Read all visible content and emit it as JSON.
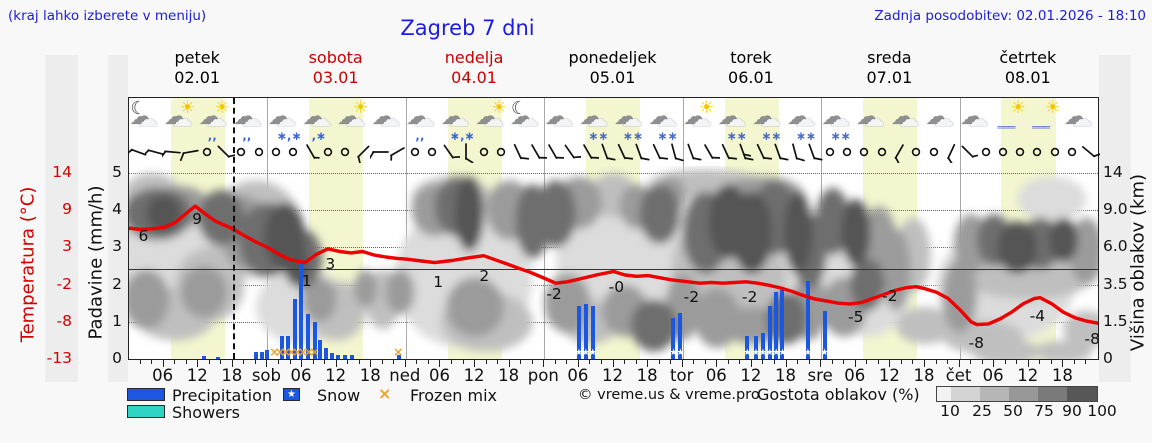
{
  "header": {
    "hint": "(kraj lahko izberete v meniju)",
    "title": "Zagreb 7 dni",
    "updated": "Zadnja posodobitev: 02.01.2026 - 18:10"
  },
  "days": [
    {
      "name": "petek",
      "date": "02.01",
      "weekend": false
    },
    {
      "name": "sobota",
      "date": "03.01",
      "weekend": true
    },
    {
      "name": "nedelja",
      "date": "04.01",
      "weekend": true
    },
    {
      "name": "ponedeljek",
      "date": "05.01",
      "weekend": false
    },
    {
      "name": "torek",
      "date": "06.01",
      "weekend": false
    },
    {
      "name": "sreda",
      "date": "07.01",
      "weekend": false
    },
    {
      "name": "četrtek",
      "date": "08.01",
      "weekend": false
    }
  ],
  "axes": {
    "temp": {
      "label": "Temperatura (°C)",
      "ticks": [
        "14",
        "9",
        "3",
        "-2",
        "-8",
        "-13"
      ],
      "color": "#d40000"
    },
    "precip": {
      "label": "Padavine (mm/h)",
      "ticks": [
        "5",
        "4",
        "3",
        "2",
        "1",
        "0"
      ]
    },
    "height": {
      "label": "Višina oblakov (km)",
      "ticks": [
        "14",
        "9.0",
        "6.0",
        "3.5",
        "1.5",
        "0"
      ]
    },
    "time": {
      "hour_labels": [
        "06",
        "12",
        "18"
      ],
      "day_abbr": [
        "sob",
        "ned",
        "pon",
        "tor",
        "sre",
        "čet"
      ]
    }
  },
  "legend": {
    "precipitation": "Precipitation",
    "snow": "Snow",
    "frozen_mix": "Frozen mix",
    "showers": "Showers",
    "credit": "© vreme.us & vreme.pro",
    "cloud_density": "Gostota oblakov (%)",
    "density_ticks": [
      "10",
      "25",
      "50",
      "75",
      "90",
      "100"
    ],
    "colors": {
      "precipitation": "#1b57df",
      "showers": "#2ed3c3",
      "frozen_mix": "#f0a125",
      "density_scale": [
        "#f2f2f2",
        "#d4d4d4",
        "#b6b6b6",
        "#989898",
        "#7a7a7a",
        "#575757"
      ]
    }
  },
  "icon_glyphs": {
    "cloud": "☁",
    "sun": "☀",
    "moon": "☾",
    "snow": "∗",
    "rain": "‚",
    "star": "★",
    "frozen": "×",
    "fog": "═"
  },
  "chart_data": {
    "type": "meteogram",
    "x_hours_range": [
      0,
      168
    ],
    "temp_scale_c": [
      -13,
      14
    ],
    "precip_scale_mm": [
      0,
      5
    ],
    "cloud_height_scale_km": [
      0,
      1.5,
      3.5,
      6.0,
      9.0,
      14
    ],
    "now_hour": 18,
    "day_band_hours": [
      7.25,
      16.65
    ],
    "temperature_c": [
      [
        0,
        6
      ],
      [
        2,
        5.8
      ],
      [
        4,
        5.9
      ],
      [
        6,
        6.1
      ],
      [
        8,
        6.8
      ],
      [
        10,
        8.2
      ],
      [
        11.5,
        9.2
      ],
      [
        13,
        8.2
      ],
      [
        15,
        7
      ],
      [
        18,
        5.9
      ],
      [
        20,
        4.9
      ],
      [
        22,
        4
      ],
      [
        24,
        3.2
      ],
      [
        26,
        2.2
      ],
      [
        28,
        1.4
      ],
      [
        30.5,
        1
      ],
      [
        32.5,
        2.2
      ],
      [
        34.5,
        3
      ],
      [
        36.5,
        2.6
      ],
      [
        38.5,
        2.4
      ],
      [
        40.5,
        2.6
      ],
      [
        42.5,
        2.1
      ],
      [
        44.5,
        1.8
      ],
      [
        46.5,
        1.6
      ],
      [
        48,
        1.5
      ],
      [
        50,
        1.3
      ],
      [
        53,
        1
      ],
      [
        56,
        1.3
      ],
      [
        59,
        1.7
      ],
      [
        61.5,
        2
      ],
      [
        63.5,
        1.4
      ],
      [
        65.5,
        0.8
      ],
      [
        67.5,
        0.2
      ],
      [
        69.5,
        -0.4
      ],
      [
        71.5,
        -1.1
      ],
      [
        74,
        -2
      ],
      [
        76,
        -1.8
      ],
      [
        78,
        -1.4
      ],
      [
        81,
        -0.8
      ],
      [
        84,
        -0.3
      ],
      [
        86,
        -0.8
      ],
      [
        88,
        -1
      ],
      [
        90,
        -0.9
      ],
      [
        92,
        -1.2
      ],
      [
        94,
        -1.5
      ],
      [
        96,
        -1.7
      ],
      [
        99,
        -2
      ],
      [
        101,
        -1.9
      ],
      [
        103,
        -2
      ],
      [
        105,
        -1.9
      ],
      [
        107,
        -1.8
      ],
      [
        109,
        -2
      ],
      [
        111,
        -2.3
      ],
      [
        113,
        -2.7
      ],
      [
        115,
        -3.2
      ],
      [
        117,
        -3.8
      ],
      [
        119,
        -4.3
      ],
      [
        121,
        -4.6
      ],
      [
        123,
        -4.9
      ],
      [
        125,
        -5
      ],
      [
        127,
        -4.8
      ],
      [
        129,
        -4.2
      ],
      [
        131,
        -3.6
      ],
      [
        133,
        -3
      ],
      [
        135,
        -2.6
      ],
      [
        136.5,
        -2.5
      ],
      [
        138,
        -2.8
      ],
      [
        140,
        -3.3
      ],
      [
        142,
        -4.2
      ],
      [
        144,
        -5.8
      ],
      [
        146,
        -7.6
      ],
      [
        147,
        -8
      ],
      [
        149,
        -7.9
      ],
      [
        151,
        -7.2
      ],
      [
        153,
        -6.2
      ],
      [
        155,
        -5
      ],
      [
        157,
        -4.2
      ],
      [
        158,
        -4.1
      ],
      [
        160,
        -5
      ],
      [
        162,
        -6.2
      ],
      [
        164,
        -7
      ],
      [
        166,
        -7.5
      ],
      [
        168,
        -7.8
      ]
    ],
    "temp_point_labels": [
      [
        2.5,
        4.9,
        "6"
      ],
      [
        11.8,
        7.3,
        "9"
      ],
      [
        30.8,
        -1.7,
        "1"
      ],
      [
        34.9,
        0.8,
        "3"
      ],
      [
        53.6,
        -1.8,
        "1"
      ],
      [
        61.6,
        -1,
        "2"
      ],
      [
        73.7,
        -3.5,
        "-2"
      ],
      [
        84.5,
        -2.5,
        "-0"
      ],
      [
        97.5,
        -4,
        "-2"
      ],
      [
        107.6,
        -4,
        "-2"
      ],
      [
        126,
        -6.9,
        "-5"
      ],
      [
        131.9,
        -3.9,
        "-2"
      ],
      [
        146.9,
        -10.7,
        "-8"
      ],
      [
        157.5,
        -6.7,
        "-4"
      ],
      [
        167,
        -10.1,
        "-8"
      ]
    ],
    "precip_bars": [
      [
        13,
        0.07,
        "rain"
      ],
      [
        15.5,
        0.05,
        "rain"
      ],
      [
        22,
        0.2,
        "rain"
      ],
      [
        23,
        0.2,
        "rain"
      ],
      [
        24,
        0.25,
        "rain"
      ],
      [
        26.5,
        0.62,
        "rain"
      ],
      [
        27.6,
        0.62,
        "rain"
      ],
      [
        28.7,
        1.6,
        "rain"
      ],
      [
        29.9,
        2.58,
        "rain"
      ],
      [
        31.1,
        1.21,
        "rain"
      ],
      [
        32.2,
        1,
        "rain"
      ],
      [
        33.2,
        0.5,
        "rain"
      ],
      [
        34.2,
        0.3,
        "rain"
      ],
      [
        35.2,
        0.15,
        "rain"
      ],
      [
        36.3,
        0.12,
        "rain"
      ],
      [
        37.4,
        0.1,
        "rain"
      ],
      [
        38.6,
        0.12,
        "rain"
      ],
      [
        46.8,
        0.1,
        "rain"
      ],
      [
        78,
        1.42,
        "snow"
      ],
      [
        79.2,
        1.48,
        "snow"
      ],
      [
        80.4,
        1.42,
        "snow"
      ],
      [
        94.4,
        1.1,
        "snow"
      ],
      [
        95.6,
        1.24,
        "snow"
      ],
      [
        107.2,
        0.62,
        "snow"
      ],
      [
        108.7,
        0.62,
        "snow"
      ],
      [
        109.9,
        0.7,
        "snow"
      ],
      [
        111.1,
        1.42,
        "snow"
      ],
      [
        112.2,
        1.81,
        "snow"
      ],
      [
        113.3,
        1.85,
        "snow"
      ],
      [
        117.7,
        2.1,
        "snow"
      ],
      [
        120.6,
        1.29,
        "snow"
      ]
    ],
    "frozen_mix_hours": [
      25,
      26,
      27,
      28,
      29,
      30,
      31,
      32,
      46.5
    ],
    "weather_icons": [
      "moon-cloud",
      "sun-cloud",
      "sun-cloud-rain",
      "cloud-rain",
      "cloud-sleet",
      "cloud-rain-snow",
      "sun-cloud",
      "cloud",
      "cloud-rain",
      "cloud-sleet",
      "sun-cloud",
      "moon-cloud",
      "cloud",
      "cloud-snow",
      "cloud-snow",
      "cloud-snow",
      "sun-cloud",
      "cloud-snow",
      "cloud-snow",
      "cloud-snow",
      "cloud-snow",
      "cloud",
      "cloud",
      "cloud",
      "cloud",
      "sun-fog",
      "sun-fog",
      "cloud"
    ],
    "wind_barbs": [
      [
        200,
        1
      ],
      [
        195,
        1
      ],
      [
        185,
        1
      ],
      [
        170,
        1
      ],
      "c",
      [
        45,
        1
      ],
      "c",
      "c",
      "c",
      "c",
      [
        60,
        0.5
      ],
      "c",
      "c",
      [
        135,
        1
      ],
      [
        180,
        1
      ],
      [
        150,
        0.5
      ],
      "c",
      "c",
      [
        55,
        1
      ],
      [
        90,
        1
      ],
      "c",
      "c",
      [
        65,
        1
      ],
      [
        60,
        1
      ],
      [
        60,
        1
      ],
      [
        55,
        1
      ],
      [
        60,
        1
      ],
      [
        70,
        1
      ],
      [
        65,
        1
      ],
      [
        70,
        1
      ],
      [
        65,
        1
      ],
      [
        75,
        1
      ],
      [
        70,
        1
      ],
      [
        60,
        1
      ],
      [
        65,
        1
      ],
      [
        70,
        1.5
      ],
      [
        65,
        1
      ],
      [
        70,
        1
      ],
      [
        75,
        1
      ],
      [
        70,
        1
      ],
      "c",
      "c",
      "c",
      "c",
      [
        120,
        1
      ],
      "c",
      "c",
      [
        115,
        1
      ],
      [
        45,
        0.5
      ],
      "c",
      "c",
      "c",
      "c",
      "c",
      "c",
      [
        40,
        1
      ]
    ],
    "cloud_blobs": [
      [
        6,
        2.6,
        10,
        1.6,
        25
      ],
      [
        30,
        1.4,
        8,
        1,
        25
      ],
      [
        58,
        2.2,
        12,
        1.9,
        25
      ],
      [
        88,
        2.6,
        14,
        2,
        25
      ],
      [
        112,
        2.6,
        10,
        2,
        25
      ],
      [
        128,
        2.2,
        8,
        1.6,
        25
      ],
      [
        152,
        2,
        12,
        1.5,
        25
      ],
      [
        160,
        4.3,
        6,
        0.6,
        25
      ],
      [
        4,
        4.4,
        5,
        0.6,
        50
      ],
      [
        14,
        2,
        6,
        1,
        50
      ],
      [
        8,
        1.2,
        7,
        0.7,
        50
      ],
      [
        22,
        3.5,
        8,
        1.3,
        50
      ],
      [
        36,
        1.3,
        5,
        0.8,
        50
      ],
      [
        44,
        1.6,
        3,
        0.8,
        50
      ],
      [
        56,
        4.3,
        7,
        0.6,
        50
      ],
      [
        62,
        1,
        8,
        0.8,
        50
      ],
      [
        84,
        4.4,
        4,
        0.6,
        50
      ],
      [
        80,
        1,
        5,
        0.6,
        50
      ],
      [
        98,
        2.3,
        4,
        1.2,
        50
      ],
      [
        106,
        2.2,
        8,
        1,
        50
      ],
      [
        136,
        2.8,
        3,
        1,
        50
      ],
      [
        138,
        0.9,
        5,
        0.5,
        50
      ],
      [
        148,
        0.6,
        7,
        0.45,
        50
      ],
      [
        166,
        0.8,
        4,
        0.5,
        50
      ],
      [
        156,
        2.2,
        11,
        0.6,
        50
      ],
      [
        100,
        4.7,
        10,
        0.4,
        50
      ],
      [
        152,
        0.2,
        6,
        0.35,
        50
      ],
      [
        162,
        0.2,
        5,
        0.3,
        50
      ],
      [
        3,
        1.6,
        4,
        0.8,
        75
      ],
      [
        13,
        1.8,
        4,
        0.7,
        75
      ],
      [
        9,
        4.1,
        5,
        0.55,
        75
      ],
      [
        20,
        3.4,
        4,
        1,
        75
      ],
      [
        33,
        1.6,
        3,
        0.6,
        75
      ],
      [
        47,
        1.8,
        2.5,
        0.6,
        75
      ],
      [
        53,
        4,
        4,
        0.7,
        75
      ],
      [
        66,
        4,
        4,
        0.8,
        75
      ],
      [
        60,
        1.4,
        5,
        0.8,
        75
      ],
      [
        76,
        1.5,
        4,
        0.8,
        75
      ],
      [
        78,
        4.2,
        4,
        0.7,
        75
      ],
      [
        88,
        4.1,
        3,
        0.6,
        75
      ],
      [
        86,
        1.3,
        4,
        0.7,
        75
      ],
      [
        94,
        4.4,
        2.5,
        0.5,
        75
      ],
      [
        96,
        1.4,
        3,
        0.9,
        75
      ],
      [
        102,
        1.1,
        4,
        0.8,
        75
      ],
      [
        110,
        4.4,
        7,
        0.5,
        75
      ],
      [
        108,
        0.9,
        5,
        0.5,
        75
      ],
      [
        118,
        1.4,
        3,
        0.9,
        75
      ],
      [
        130,
        3.2,
        3,
        0.9,
        75
      ],
      [
        133,
        2.4,
        2.5,
        1.1,
        75
      ],
      [
        144,
        1.7,
        3,
        1,
        75
      ],
      [
        146,
        3.1,
        3,
        0.8,
        75
      ],
      [
        166,
        2.9,
        3,
        0.9,
        75
      ],
      [
        124,
        1.4,
        4,
        0.8,
        75
      ],
      [
        41,
        1.9,
        2,
        0.5,
        75
      ],
      [
        5,
        3.9,
        6,
        0.7,
        90
      ],
      [
        16,
        3.8,
        4,
        0.75,
        90
      ],
      [
        24,
        3.2,
        5,
        1,
        90
      ],
      [
        30,
        2.7,
        3.5,
        0.8,
        90
      ],
      [
        57,
        4.1,
        4,
        0.8,
        90
      ],
      [
        70,
        3.7,
        3,
        1,
        90
      ],
      [
        74,
        3.9,
        3.5,
        0.9,
        90
      ],
      [
        92,
        3.9,
        3.5,
        0.8,
        90
      ],
      [
        91,
        0.9,
        4,
        0.7,
        90
      ],
      [
        100,
        3.4,
        4,
        1.1,
        90
      ],
      [
        112,
        3.8,
        4,
        1,
        90
      ],
      [
        118,
        2.9,
        3,
        1,
        90
      ],
      [
        114,
        1.1,
        3.5,
        0.7,
        90
      ],
      [
        122,
        3.7,
        3,
        0.9,
        90
      ],
      [
        128,
        2,
        3,
        0.7,
        90
      ],
      [
        150,
        3.2,
        3,
        0.7,
        90
      ],
      [
        158,
        3.1,
        3.5,
        0.7,
        90
      ],
      [
        27,
        3.3,
        3.5,
        0.9,
        100
      ],
      [
        29,
        2.6,
        2,
        0.6,
        100
      ],
      [
        59,
        3.9,
        2.5,
        1,
        100
      ],
      [
        104,
        3.7,
        3.5,
        1,
        100
      ],
      [
        108,
        3.4,
        3.5,
        1.1,
        100
      ],
      [
        116,
        3.4,
        2.5,
        1.1,
        100
      ],
      [
        126,
        3.4,
        2.5,
        0.9,
        100
      ],
      [
        154,
        3,
        3.5,
        0.7,
        100
      ],
      [
        162,
        3.2,
        2.5,
        0.6,
        100
      ],
      [
        6,
        3.9,
        3,
        0.5,
        100
      ]
    ]
  }
}
